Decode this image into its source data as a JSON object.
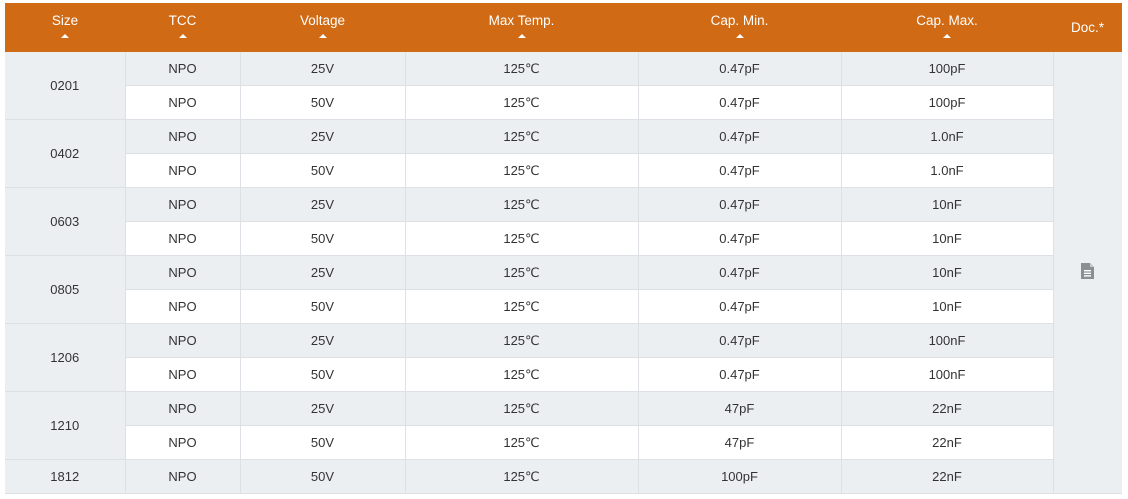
{
  "header": {
    "columns": [
      {
        "label": "Size",
        "sortable": true
      },
      {
        "label": "TCC",
        "sortable": true
      },
      {
        "label": "Voltage",
        "sortable": true
      },
      {
        "label": "Max Temp.",
        "sortable": true
      },
      {
        "label": "Cap. Min.",
        "sortable": true
      },
      {
        "label": "Cap. Max.",
        "sortable": true
      },
      {
        "label": "Doc.*",
        "sortable": false
      }
    ]
  },
  "colors": {
    "header_bg": "#D06A14",
    "row_alt": "#ECEFF2"
  },
  "doc_icon": "document-icon",
  "groups": [
    {
      "size": "0201",
      "rows": [
        {
          "tcc": "NPO",
          "voltage": "25V",
          "max_temp": "125℃",
          "cap_min": "0.47pF",
          "cap_max": "100pF"
        },
        {
          "tcc": "NPO",
          "voltage": "50V",
          "max_temp": "125℃",
          "cap_min": "0.47pF",
          "cap_max": "100pF"
        }
      ]
    },
    {
      "size": "0402",
      "rows": [
        {
          "tcc": "NPO",
          "voltage": "25V",
          "max_temp": "125℃",
          "cap_min": "0.47pF",
          "cap_max": "1.0nF"
        },
        {
          "tcc": "NPO",
          "voltage": "50V",
          "max_temp": "125℃",
          "cap_min": "0.47pF",
          "cap_max": "1.0nF"
        }
      ]
    },
    {
      "size": "0603",
      "rows": [
        {
          "tcc": "NPO",
          "voltage": "25V",
          "max_temp": "125℃",
          "cap_min": "0.47pF",
          "cap_max": "10nF"
        },
        {
          "tcc": "NPO",
          "voltage": "50V",
          "max_temp": "125℃",
          "cap_min": "0.47pF",
          "cap_max": "10nF"
        }
      ]
    },
    {
      "size": "0805",
      "rows": [
        {
          "tcc": "NPO",
          "voltage": "25V",
          "max_temp": "125℃",
          "cap_min": "0.47pF",
          "cap_max": "10nF"
        },
        {
          "tcc": "NPO",
          "voltage": "50V",
          "max_temp": "125℃",
          "cap_min": "0.47pF",
          "cap_max": "10nF"
        }
      ]
    },
    {
      "size": "1206",
      "rows": [
        {
          "tcc": "NPO",
          "voltage": "25V",
          "max_temp": "125℃",
          "cap_min": "0.47pF",
          "cap_max": "100nF"
        },
        {
          "tcc": "NPO",
          "voltage": "50V",
          "max_temp": "125℃",
          "cap_min": "0.47pF",
          "cap_max": "100nF"
        }
      ]
    },
    {
      "size": "1210",
      "rows": [
        {
          "tcc": "NPO",
          "voltage": "25V",
          "max_temp": "125℃",
          "cap_min": "47pF",
          "cap_max": "22nF"
        },
        {
          "tcc": "NPO",
          "voltage": "50V",
          "max_temp": "125℃",
          "cap_min": "47pF",
          "cap_max": "22nF"
        }
      ]
    },
    {
      "size": "1812",
      "rows": [
        {
          "tcc": "NPO",
          "voltage": "50V",
          "max_temp": "125℃",
          "cap_min": "100pF",
          "cap_max": "22nF"
        }
      ]
    }
  ]
}
